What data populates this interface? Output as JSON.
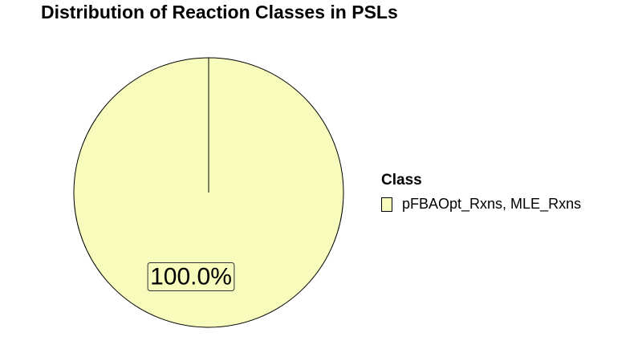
{
  "chart_data": {
    "type": "pie",
    "title": "Distribution of Reaction Classes in PSLs",
    "legend_title": "Class",
    "legend_position": "right",
    "slices": [
      {
        "label": "pFBAOpt_Rxns, MLE_Rxns",
        "value": 100.0,
        "value_label": "100.0%",
        "color": "#F7FCBD"
      }
    ]
  }
}
